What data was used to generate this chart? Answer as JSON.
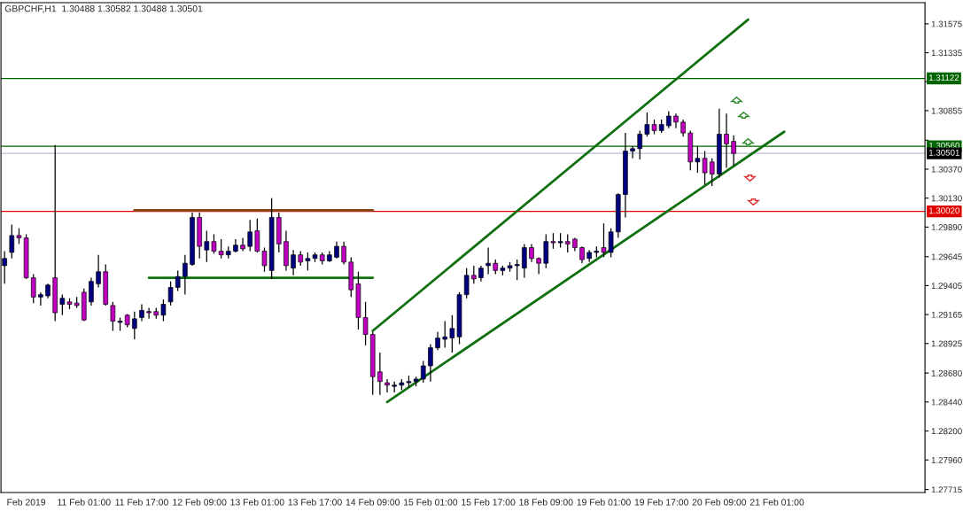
{
  "chart_data": {
    "type": "candlestick",
    "title": "GBPCHF,H1  1.30488 1.30582 1.30488 1.30501",
    "categories": [
      null,
      null,
      null,
      "Feb 2019",
      null,
      null,
      null,
      null,
      null,
      null,
      null,
      "11 Feb 01:00",
      null,
      null,
      null,
      null,
      null,
      null,
      null,
      "11 Feb 17:00",
      null,
      null,
      null,
      null,
      null,
      null,
      null,
      "12 Feb 09:00",
      null,
      null,
      null,
      null,
      null,
      null,
      null,
      "13 Feb 01:00",
      null,
      null,
      null,
      null,
      null,
      null,
      null,
      "13 Feb 17:00",
      null,
      null,
      null,
      null,
      null,
      null,
      null,
      "14 Feb 09:00",
      null,
      null,
      null,
      null,
      null,
      null,
      null,
      "15 Feb 01:00",
      null,
      null,
      null,
      null,
      null,
      null,
      null,
      "15 Feb 17:00",
      null,
      null,
      null,
      null,
      null,
      null,
      null,
      "18 Feb 09:00",
      null,
      null,
      null,
      null,
      null,
      null,
      null,
      "19 Feb 01:00",
      null,
      null,
      null,
      null,
      null,
      null,
      null,
      "19 Feb 17:00",
      null,
      null,
      null,
      null,
      null,
      null,
      null,
      "20 Feb 09:00",
      null,
      null,
      null,
      null,
      null,
      null,
      null,
      "21 Feb 01:00",
      null,
      null,
      null,
      null,
      null,
      null,
      null,
      null,
      null,
      null,
      null,
      null,
      null,
      null,
      null,
      null,
      null,
      null,
      null,
      null
    ],
    "ohlc": [
      [
        1.2957,
        1.2969,
        1.2942,
        1.2963
      ],
      [
        1.2968,
        1.2991,
        1.2963,
        1.2982
      ],
      [
        1.2982,
        1.2988,
        1.2975,
        1.298
      ],
      [
        1.298,
        1.2983,
        1.2946,
        1.2947
      ],
      [
        1.2947,
        1.295,
        1.2926,
        1.2931
      ],
      [
        1.2931,
        1.2935,
        1.2924,
        1.2933
      ],
      [
        1.2932,
        1.2942,
        1.293,
        1.2941
      ],
      [
        1.2947,
        1.3057,
        1.2911,
        1.2918
      ],
      [
        1.2925,
        1.2933,
        1.2916,
        1.293
      ],
      [
        1.2927,
        1.293,
        1.2921,
        1.2925
      ],
      [
        1.2926,
        1.2931,
        1.2922,
        1.2924
      ],
      [
        1.2935,
        1.2938,
        1.2911,
        1.2912
      ],
      [
        1.2927,
        1.2947,
        1.2924,
        1.2944
      ],
      [
        1.2942,
        1.2966,
        1.2939,
        1.2952
      ],
      [
        1.2952,
        1.2958,
        1.2924,
        1.2925
      ],
      [
        1.2924,
        1.2927,
        1.2903,
        1.2911
      ],
      [
        1.291,
        1.2914,
        1.2903,
        1.2911
      ],
      [
        1.2916,
        1.2917,
        1.2906,
        1.2908
      ],
      [
        1.2905,
        1.2919,
        1.2896,
        1.2913
      ],
      [
        1.2914,
        1.2925,
        1.2911,
        1.292
      ],
      [
        1.2919,
        1.2922,
        1.2913,
        1.2918
      ],
      [
        1.2919,
        1.2922,
        1.2913,
        1.2916
      ],
      [
        1.2916,
        1.2929,
        1.2911,
        1.2925
      ],
      [
        1.2927,
        1.2944,
        1.2924,
        1.2939
      ],
      [
        1.2939,
        1.2953,
        1.2936,
        1.2948
      ],
      [
        1.2948,
        1.2966,
        1.2933,
        1.2959
      ],
      [
        1.2958,
        1.3001,
        1.2957,
        1.2997
      ],
      [
        1.2997,
        1.3001,
        1.2963,
        1.2973
      ],
      [
        1.297,
        1.2986,
        1.296,
        1.2977
      ],
      [
        1.2977,
        1.2983,
        1.2967,
        1.2969
      ],
      [
        1.2969,
        1.2979,
        1.2963,
        1.2966
      ],
      [
        1.2966,
        1.2973,
        1.2963,
        1.2969
      ],
      [
        1.2969,
        1.2979,
        1.2968,
        1.2974
      ],
      [
        1.2974,
        1.298,
        1.2969,
        1.2971
      ],
      [
        1.2973,
        1.2995,
        1.2969,
        1.2985
      ],
      [
        1.2986,
        1.2996,
        1.2968,
        1.2969
      ],
      [
        1.2969,
        1.2972,
        1.2952,
        1.2957
      ],
      [
        1.2953,
        1.3013,
        1.2946,
        1.2997
      ],
      [
        1.2997,
        1.3001,
        1.2968,
        1.2975
      ],
      [
        1.2977,
        1.2986,
        1.2953,
        1.2957
      ],
      [
        1.2955,
        1.297,
        1.2949,
        1.2966
      ],
      [
        1.2966,
        1.2969,
        1.2957,
        1.296
      ],
      [
        1.2961,
        1.2968,
        1.2953,
        1.2963
      ],
      [
        1.2963,
        1.2968,
        1.296,
        1.2966
      ],
      [
        1.2966,
        1.2968,
        1.2958,
        1.2961
      ],
      [
        1.2961,
        1.2969,
        1.296,
        1.2966
      ],
      [
        1.2964,
        1.2977,
        1.2963,
        1.2973
      ],
      [
        1.2973,
        1.2977,
        1.2958,
        1.296
      ],
      [
        1.296,
        1.2964,
        1.2931,
        1.2937
      ],
      [
        1.2942,
        1.2952,
        1.2904,
        1.2914
      ],
      [
        1.2914,
        1.2927,
        1.2891,
        1.29
      ],
      [
        1.29,
        1.2902,
        1.285,
        1.2865
      ],
      [
        1.2869,
        1.2885,
        1.285,
        1.2861
      ],
      [
        1.286,
        1.2863,
        1.2852,
        1.2858
      ],
      [
        1.2857,
        1.2861,
        1.2852,
        1.2858
      ],
      [
        1.2858,
        1.2863,
        1.2854,
        1.286
      ],
      [
        1.286,
        1.2866,
        1.2856,
        1.2861
      ],
      [
        1.2861,
        1.2865,
        1.2857,
        1.2863
      ],
      [
        1.2863,
        1.2878,
        1.286,
        1.2874
      ],
      [
        1.2874,
        1.2892,
        1.2861,
        1.2889
      ],
      [
        1.2889,
        1.2902,
        1.2887,
        1.2897
      ],
      [
        1.2896,
        1.2911,
        1.2889,
        1.2898
      ],
      [
        1.2897,
        1.2916,
        1.2885,
        1.2905
      ],
      [
        1.2898,
        1.2935,
        1.2892,
        1.2933
      ],
      [
        1.2933,
        1.2955,
        1.293,
        1.2949
      ],
      [
        1.2949,
        1.2957,
        1.2942,
        1.2946
      ],
      [
        1.2947,
        1.2957,
        1.2944,
        1.2955
      ],
      [
        1.2957,
        1.2972,
        1.295,
        1.2959
      ],
      [
        1.2959,
        1.2962,
        1.295,
        1.2953
      ],
      [
        1.2953,
        1.2957,
        1.2949,
        1.2955
      ],
      [
        1.2955,
        1.296,
        1.2952,
        1.2957
      ],
      [
        1.2957,
        1.2962,
        1.2945,
        1.2958
      ],
      [
        1.2955,
        1.2975,
        1.2947,
        1.2972
      ],
      [
        1.2972,
        1.2975,
        1.296,
        1.2963
      ],
      [
        1.2963,
        1.2964,
        1.295,
        1.2959
      ],
      [
        1.2959,
        1.2983,
        1.2955,
        1.2977
      ],
      [
        1.2977,
        1.2984,
        1.2971,
        1.2976
      ],
      [
        1.2976,
        1.2984,
        1.2972,
        1.2977
      ],
      [
        1.2977,
        1.2983,
        1.2968,
        1.2975
      ],
      [
        1.2979,
        1.298,
        1.2969,
        1.2972
      ],
      [
        1.2972,
        1.2973,
        1.2959,
        1.2962
      ],
      [
        1.2963,
        1.297,
        1.296,
        1.2968
      ],
      [
        1.2968,
        1.2973,
        1.2964,
        1.2969
      ],
      [
        1.2972,
        1.2992,
        1.2964,
        1.2968
      ],
      [
        1.2968,
        1.2988,
        1.2964,
        1.2985
      ],
      [
        1.2985,
        1.3017,
        1.298,
        1.3016
      ],
      [
        1.3016,
        1.3067,
        1.2997,
        1.3052
      ],
      [
        1.3052,
        1.3056,
        1.3046,
        1.3054
      ],
      [
        1.3054,
        1.3069,
        1.3045,
        1.3066
      ],
      [
        1.3066,
        1.3084,
        1.3064,
        1.3074
      ],
      [
        1.3074,
        1.3078,
        1.3066,
        1.3069
      ],
      [
        1.3069,
        1.3078,
        1.3067,
        1.3074
      ],
      [
        1.3073,
        1.3085,
        1.3071,
        1.3081
      ],
      [
        1.3081,
        1.3083,
        1.3071,
        1.3076
      ],
      [
        1.3076,
        1.3078,
        1.3064,
        1.3067
      ],
      [
        1.3067,
        1.3069,
        1.3036,
        1.3043
      ],
      [
        1.3043,
        1.3056,
        1.3034,
        1.3046
      ],
      [
        1.3046,
        1.3052,
        1.3024,
        1.3034
      ],
      [
        1.3043,
        1.3046,
        1.3023,
        1.3033
      ],
      [
        1.3033,
        1.3087,
        1.303,
        1.3066
      ],
      [
        1.3066,
        1.3083,
        1.3038,
        1.3058
      ],
      [
        1.306,
        1.3065,
        1.304,
        1.305
      ],
      null,
      null,
      null,
      null,
      null,
      null,
      null,
      null,
      null,
      null,
      null,
      null,
      null,
      null,
      null,
      null,
      null,
      null,
      null,
      null,
      null,
      null,
      null,
      null,
      null,
      null
    ],
    "colors": [
      "#000080",
      "#000080",
      "#c000c0",
      "#c000c0",
      "#c000c0",
      "#000080",
      "#000080",
      "#c000c0",
      "#000080",
      "#c000c0",
      "#c000c0",
      "#c000c0",
      "#000080",
      "#000080",
      "#c000c0",
      "#c000c0",
      "#000080",
      "#c000c0",
      "#000080",
      "#000080",
      "#c000c0",
      "#c000c0",
      "#000080",
      "#000080",
      "#000080",
      "#000080",
      "#000080",
      "#c000c0",
      "#000080",
      "#c000c0",
      "#c000c0",
      "#000080",
      "#000080",
      "#c000c0",
      "#000080",
      "#c000c0",
      "#c000c0",
      "#000080",
      "#c000c0",
      "#c000c0",
      "#000080",
      "#c000c0",
      "#000080",
      "#000080",
      "#c000c0",
      "#000080",
      "#000080",
      "#c000c0",
      "#c000c0",
      "#c000c0",
      "#c000c0",
      "#c000c0",
      "#c000c0",
      "#c000c0",
      "#000080",
      "#000080",
      "#000080",
      "#000080",
      "#000080",
      "#000080",
      "#000080",
      "#000080",
      "#000080",
      "#000080",
      "#000080",
      "#c000c0",
      "#000080",
      "#000080",
      "#c000c0",
      "#000080",
      "#000080",
      "#000080",
      "#000080",
      "#c000c0",
      "#c000c0",
      "#000080",
      "#c000c0",
      "#000080",
      "#c000c0",
      "#c000c0",
      "#c000c0",
      "#000080",
      "#000080",
      "#c000c0",
      "#000080",
      "#000080",
      "#000080",
      "#000080",
      "#000080",
      "#000080",
      "#c000c0",
      "#000080",
      "#000080",
      "#c000c0",
      "#c000c0",
      "#c000c0",
      "#000080",
      "#c000c0",
      "#c000c0",
      "#000080",
      "#c000c0",
      "#c000c0",
      null,
      null,
      null,
      null,
      null,
      null,
      null,
      null,
      null,
      null,
      null,
      null,
      null,
      null,
      null,
      null,
      null,
      null,
      null,
      null,
      null,
      null,
      null,
      null,
      null,
      null
    ],
    "series": [
      {
        "type": "line",
        "color": "#107010",
        "values": [
          null,
          null,
          null,
          null,
          null,
          null,
          null,
          null,
          null,
          null,
          null,
          null,
          null,
          null,
          null,
          null,
          null,
          null,
          null,
          null,
          null,
          null,
          null,
          null,
          null,
          null,
          null,
          null,
          null,
          null,
          null,
          null,
          null,
          null,
          null,
          null,
          null,
          null,
          null,
          null,
          null,
          null,
          null,
          null,
          null,
          null,
          null,
          null,
          null,
          null,
          null,
          1.2903,
          null,
          null,
          null,
          null,
          null,
          null,
          null,
          null,
          null,
          null,
          null,
          null,
          null,
          null,
          null,
          null,
          null,
          null,
          null,
          null,
          null,
          null,
          null,
          null,
          null,
          null,
          null,
          null,
          null,
          null,
          null,
          null,
          null,
          null,
          null,
          null,
          null,
          null,
          null,
          null,
          null,
          null,
          null,
          null,
          null,
          null,
          null,
          null,
          null,
          null,
          null,
          1.3161,
          null,
          null,
          null,
          null,
          null,
          null,
          null,
          null,
          null,
          null,
          null,
          null,
          null,
          null,
          null,
          null,
          null,
          null,
          null,
          null,
          null,
          null,
          null,
          null
        ]
      },
      {
        "type": "line",
        "color": "#107010",
        "values": [
          null,
          null,
          null,
          null,
          null,
          null,
          null,
          null,
          null,
          null,
          null,
          null,
          null,
          null,
          null,
          null,
          null,
          null,
          null,
          null,
          null,
          null,
          null,
          null,
          null,
          null,
          null,
          null,
          null,
          null,
          null,
          null,
          null,
          null,
          null,
          null,
          null,
          null,
          null,
          null,
          null,
          null,
          null,
          null,
          null,
          null,
          null,
          null,
          null,
          null,
          null,
          null,
          null,
          1.2844,
          null,
          null,
          null,
          null,
          null,
          null,
          null,
          null,
          null,
          null,
          null,
          null,
          null,
          null,
          null,
          null,
          null,
          null,
          null,
          null,
          null,
          null,
          null,
          null,
          null,
          null,
          null,
          null,
          null,
          null,
          null,
          null,
          null,
          null,
          null,
          null,
          null,
          null,
          null,
          null,
          null,
          null,
          null,
          null,
          null,
          null,
          null,
          null,
          null,
          null,
          null,
          null,
          null,
          null,
          1.3068,
          null,
          null,
          null,
          null,
          null,
          null,
          null,
          null,
          null,
          null,
          null,
          null,
          null,
          null,
          null,
          null,
          null,
          null,
          null
        ]
      },
      {
        "type": "line",
        "color": "#8b4513",
        "values": [
          null,
          null,
          null,
          null,
          null,
          null,
          null,
          null,
          null,
          null,
          null,
          null,
          null,
          null,
          null,
          null,
          null,
          null,
          1.3003,
          null,
          null,
          null,
          null,
          null,
          null,
          null,
          null,
          null,
          null,
          null,
          null,
          null,
          null,
          null,
          null,
          null,
          null,
          null,
          null,
          null,
          null,
          null,
          null,
          null,
          null,
          null,
          null,
          null,
          null,
          null,
          null,
          1.3003,
          null,
          null,
          null,
          null,
          null,
          null,
          null,
          null,
          null,
          null,
          null,
          null,
          null,
          null,
          null,
          null,
          null,
          null,
          null,
          null,
          null,
          null,
          null,
          null,
          null,
          null,
          null,
          null,
          null,
          null,
          null,
          null,
          null,
          null,
          null,
          null,
          null,
          null,
          null,
          null,
          null,
          null,
          null,
          null,
          null,
          null,
          null,
          null,
          null,
          null,
          null,
          null,
          null,
          null,
          null,
          null,
          null,
          null,
          null,
          null,
          null,
          null,
          null,
          null,
          null,
          null,
          null,
          null,
          null,
          null,
          null,
          null,
          null,
          null,
          null,
          null
        ]
      },
      {
        "type": "line",
        "color": "#107010",
        "values": [
          null,
          null,
          null,
          null,
          null,
          null,
          null,
          null,
          null,
          null,
          null,
          null,
          null,
          null,
          null,
          null,
          null,
          null,
          null,
          null,
          1.2947,
          null,
          null,
          null,
          null,
          null,
          null,
          null,
          null,
          null,
          null,
          null,
          null,
          null,
          null,
          null,
          null,
          null,
          null,
          null,
          null,
          null,
          null,
          null,
          null,
          null,
          null,
          null,
          null,
          null,
          null,
          1.2947,
          null,
          null,
          null,
          null,
          null,
          null,
          null,
          null,
          null,
          null,
          null,
          null,
          null,
          null,
          null,
          null,
          null,
          null,
          null,
          null,
          null,
          null,
          null,
          null,
          null,
          null,
          null,
          null,
          null,
          null,
          null,
          null,
          null,
          null,
          null,
          null,
          null,
          null,
          null,
          null,
          null,
          null,
          null,
          null,
          null,
          null,
          null,
          null,
          null,
          null,
          null,
          null,
          null,
          null,
          null,
          null,
          null,
          null,
          null,
          null,
          null,
          null,
          null,
          null,
          null,
          null,
          null,
          null,
          null,
          null,
          null,
          null,
          null,
          null,
          null,
          null
        ]
      }
    ],
    "ylim": [
      1.2769,
      1.3175
    ],
    "yticks": [
      1.31575,
      1.31335,
      {
        "value": 1.31095,
        "label": null
      },
      1.30855,
      {
        "value": 1.3061,
        "label": null
      },
      {
        "value": 1.3037,
        "label": "1.30370"
      },
      {
        "value": 1.3013,
        "label": "1.30130"
      },
      {
        "value": 1.2989,
        "label": "1.29890"
      },
      1.29645,
      1.29405,
      1.29165,
      1.28925,
      {
        "value": 1.2868,
        "label": "1.28680"
      },
      {
        "value": 1.2844,
        "label": "1.28440"
      },
      {
        "value": 1.282,
        "label": "1.28200"
      },
      {
        "value": 1.2796,
        "label": "1.27960"
      },
      1.27715
    ],
    "ref_lines": [
      {
        "axis": "y",
        "value": 1.31122,
        "label": "1.31122",
        "color": "#006400"
      },
      {
        "axis": "y",
        "value": 1.3056,
        "label": "1.30560",
        "color": "#006400"
      },
      {
        "axis": "y",
        "value": 1.30501,
        "label": "1.30501",
        "color": "#b8c0d8"
      },
      {
        "axis": "y",
        "value": 1.3002,
        "label": "1.30020",
        "color": "#e00000"
      }
    ]
  }
}
